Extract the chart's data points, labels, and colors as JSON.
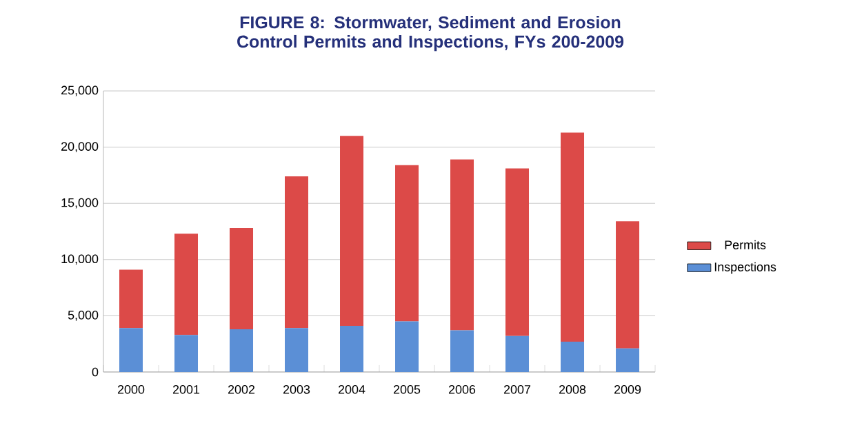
{
  "chart_data": {
    "type": "bar",
    "title": "FIGURE 8:  Stormwater, Sediment and Erosion Control Permits and Inspections, FYs 200-2009",
    "categories": [
      "2000",
      "2001",
      "2002",
      "2003",
      "2004",
      "2005",
      "2006",
      "2007",
      "2008",
      "2009"
    ],
    "series": [
      {
        "name": "Inspections",
        "color": "#5b8fd6",
        "values": [
          3900,
          3300,
          3800,
          3900,
          4100,
          4500,
          3700,
          3200,
          2700,
          2100
        ]
      },
      {
        "name": "Permits",
        "color": "#dc4a48",
        "values": [
          5200,
          9000,
          9000,
          13500,
          16900,
          13900,
          15200,
          14900,
          18600,
          11300
        ]
      }
    ],
    "stacked": true,
    "ylim": [
      0,
      25000
    ],
    "yticks": [
      0,
      {
        "value": 5000,
        "label": "5,000"
      },
      {
        "value": 10000,
        "label": "10,000"
      },
      {
        "value": 15000,
        "label": "15,000"
      },
      {
        "value": 20000,
        "label": "20,000"
      },
      {
        "value": 25000,
        "label": "25,000"
      }
    ],
    "grid": "y",
    "legend": "right"
  }
}
